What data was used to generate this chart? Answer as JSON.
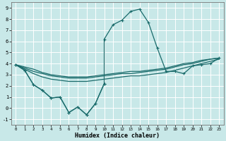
{
  "xlabel": "Humidex (Indice chaleur)",
  "xlim": [
    -0.5,
    23.5
  ],
  "ylim": [
    -1.5,
    9.5
  ],
  "xticks": [
    0,
    1,
    2,
    3,
    4,
    5,
    6,
    7,
    8,
    9,
    10,
    11,
    12,
    13,
    14,
    15,
    16,
    17,
    18,
    19,
    20,
    21,
    22,
    23
  ],
  "yticks": [
    -1,
    0,
    1,
    2,
    3,
    4,
    5,
    6,
    7,
    8,
    9
  ],
  "background_color": "#c8e8e8",
  "grid_color": "#ffffff",
  "line_color": "#1a6b6b",
  "line_dip_x": [
    0,
    1,
    2,
    3,
    4,
    5,
    6,
    7,
    8,
    9,
    10
  ],
  "line_dip_y": [
    3.9,
    3.4,
    2.1,
    1.6,
    0.9,
    1.0,
    -0.4,
    0.1,
    -0.6,
    0.4,
    2.2
  ],
  "line_peak_x": [
    10,
    11,
    12,
    13,
    14,
    15,
    16,
    17,
    18,
    19,
    20,
    21,
    22,
    23
  ],
  "line_peak_y": [
    6.2,
    7.5,
    7.9,
    8.7,
    8.9,
    7.7,
    5.4,
    3.3,
    3.3,
    3.1,
    3.8,
    3.9,
    4.0,
    4.5
  ],
  "line_flat1_x": [
    0,
    1,
    2,
    3,
    4,
    5,
    6,
    7,
    8,
    9,
    10,
    11,
    12,
    13,
    14,
    15,
    16,
    17,
    18,
    19,
    20,
    21,
    22,
    23
  ],
  "line_flat1_y": [
    3.9,
    3.5,
    3.1,
    2.8,
    2.6,
    2.5,
    2.4,
    2.4,
    2.4,
    2.5,
    2.6,
    2.7,
    2.8,
    2.9,
    2.9,
    3.0,
    3.1,
    3.2,
    3.4,
    3.6,
    3.8,
    4.0,
    4.2,
    4.4
  ],
  "line_flat2_x": [
    0,
    1,
    2,
    3,
    4,
    5,
    6,
    7,
    8,
    9,
    10,
    11,
    12,
    13,
    14,
    15,
    16,
    17,
    18,
    19,
    20,
    21,
    22,
    23
  ],
  "line_flat2_y": [
    3.9,
    3.6,
    3.3,
    3.1,
    2.9,
    2.8,
    2.7,
    2.7,
    2.7,
    2.8,
    2.9,
    3.0,
    3.1,
    3.1,
    3.2,
    3.3,
    3.4,
    3.5,
    3.7,
    3.9,
    4.0,
    4.2,
    4.4,
    4.5
  ],
  "line_flat3_x": [
    0,
    1,
    2,
    3,
    4,
    5,
    6,
    7,
    8,
    9,
    10,
    11,
    12,
    13,
    14,
    15,
    16,
    17,
    18,
    19,
    20,
    21,
    22,
    23
  ],
  "line_flat3_y": [
    3.9,
    3.7,
    3.5,
    3.2,
    3.0,
    2.9,
    2.8,
    2.8,
    2.8,
    2.9,
    3.0,
    3.1,
    3.2,
    3.3,
    3.3,
    3.4,
    3.5,
    3.6,
    3.8,
    4.0,
    4.1,
    4.3,
    4.4,
    4.5
  ]
}
